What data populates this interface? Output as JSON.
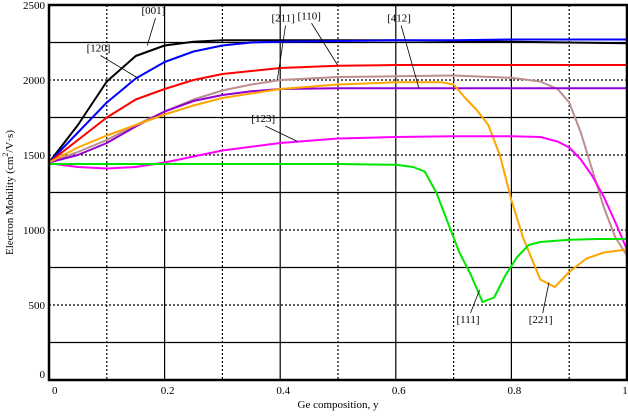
{
  "chart_data": {
    "type": "line",
    "title": "",
    "xlabel": "Ge composition, y",
    "ylabel": "Electron Mobility (cm²/V·s)",
    "ylabel_parts": {
      "main": "Electron Mobility (cm",
      "sup": "2",
      "tail": "/V·s)"
    },
    "xlim": [
      0,
      1
    ],
    "ylim": [
      0,
      2500
    ],
    "x_ticks": [
      0,
      0.2,
      0.4,
      0.6,
      0.8,
      1
    ],
    "x_tick_labels": [
      "0",
      "0.2",
      "0.4",
      "0.6",
      "0.8",
      "1"
    ],
    "y_ticks": [
      0,
      500,
      1000,
      1500,
      2000,
      2500
    ],
    "y_tick_labels": [
      "0",
      "500",
      "1000",
      "1500",
      "2000",
      "2500"
    ],
    "grid": true,
    "legend": "none (inline labels)",
    "series": [
      {
        "name": "[001]",
        "color": "#000000",
        "x": [
          0,
          0.05,
          0.1,
          0.15,
          0.2,
          0.25,
          0.3,
          0.4,
          0.5,
          0.6,
          0.7,
          0.8,
          0.9,
          1.0
        ],
        "y": [
          1450,
          1700,
          1990,
          2160,
          2230,
          2255,
          2265,
          2265,
          2265,
          2265,
          2260,
          2255,
          2250,
          2245
        ]
      },
      {
        "name": "[120]",
        "color": "#0000ff",
        "x": [
          0,
          0.05,
          0.1,
          0.15,
          0.2,
          0.25,
          0.3,
          0.35,
          0.4,
          0.5,
          0.6,
          0.7,
          0.8,
          0.9,
          1.0
        ],
        "y": [
          1450,
          1650,
          1850,
          2010,
          2120,
          2190,
          2230,
          2250,
          2255,
          2260,
          2265,
          2265,
          2270,
          2270,
          2270
        ]
      },
      {
        "name": "[110]",
        "color": "#ff0000",
        "x": [
          0,
          0.05,
          0.1,
          0.15,
          0.2,
          0.25,
          0.3,
          0.4,
          0.5,
          0.6,
          0.7,
          0.8,
          0.9,
          1.0
        ],
        "y": [
          1450,
          1600,
          1750,
          1870,
          1940,
          2000,
          2040,
          2080,
          2095,
          2100,
          2100,
          2100,
          2100,
          2100
        ]
      },
      {
        "name": "[211]",
        "color": "#bc8f8f",
        "x": [
          0,
          0.05,
          0.1,
          0.15,
          0.2,
          0.25,
          0.3,
          0.35,
          0.4,
          0.5,
          0.6,
          0.7,
          0.8,
          0.85,
          0.88,
          0.9,
          0.92,
          0.94,
          0.96,
          0.98,
          1.0
        ],
        "y": [
          1450,
          1520,
          1600,
          1700,
          1790,
          1870,
          1930,
          1970,
          2000,
          2020,
          2025,
          2030,
          2015,
          1990,
          1940,
          1850,
          1650,
          1400,
          1150,
          950,
          830
        ]
      },
      {
        "name": "[412]",
        "color": "#9400d3",
        "x": [
          0,
          0.05,
          0.1,
          0.15,
          0.2,
          0.25,
          0.3,
          0.35,
          0.4,
          0.5,
          0.6,
          0.7,
          0.8,
          0.9,
          1.0
        ],
        "y": [
          1450,
          1500,
          1580,
          1690,
          1790,
          1860,
          1900,
          1925,
          1940,
          1945,
          1945,
          1945,
          1945,
          1945,
          1945
        ]
      },
      {
        "name": "[221]",
        "color": "#ffa500",
        "x": [
          0,
          0.05,
          0.1,
          0.15,
          0.2,
          0.25,
          0.3,
          0.4,
          0.5,
          0.6,
          0.65,
          0.68,
          0.7,
          0.72,
          0.74,
          0.76,
          0.78,
          0.8,
          0.82,
          0.85,
          0.875,
          0.9,
          0.93,
          0.96,
          1.0
        ],
        "y": [
          1450,
          1550,
          1630,
          1700,
          1770,
          1830,
          1880,
          1940,
          1970,
          1985,
          1985,
          1985,
          1970,
          1880,
          1800,
          1700,
          1500,
          1200,
          950,
          670,
          620,
          720,
          810,
          850,
          870
        ]
      },
      {
        "name": "[123]",
        "color": "#ff00ff",
        "x": [
          0,
          0.05,
          0.1,
          0.15,
          0.2,
          0.25,
          0.3,
          0.4,
          0.5,
          0.6,
          0.7,
          0.8,
          0.85,
          0.88,
          0.9,
          0.92,
          0.94,
          0.96,
          0.98,
          1.0
        ],
        "y": [
          1445,
          1420,
          1410,
          1420,
          1450,
          1490,
          1530,
          1580,
          1610,
          1620,
          1625,
          1625,
          1620,
          1590,
          1550,
          1470,
          1360,
          1220,
          1050,
          870
        ]
      },
      {
        "name": "[111]",
        "color": "#00e600",
        "x": [
          0,
          0.05,
          0.1,
          0.2,
          0.3,
          0.4,
          0.5,
          0.6,
          0.63,
          0.65,
          0.67,
          0.69,
          0.71,
          0.73,
          0.75,
          0.77,
          0.79,
          0.81,
          0.83,
          0.85,
          0.9,
          0.95,
          1.0
        ],
        "y": [
          1440,
          1440,
          1440,
          1440,
          1440,
          1440,
          1440,
          1435,
          1420,
          1390,
          1250,
          1050,
          850,
          700,
          520,
          550,
          700,
          820,
          900,
          920,
          935,
          940,
          940
        ]
      }
    ],
    "annotations": [
      {
        "text": "[001]",
        "label_x": 0.16,
        "label_y": 2440,
        "point_x": 0.17,
        "point_y": 2230
      },
      {
        "text": "[120]",
        "label_x": 0.065,
        "label_y": 2190,
        "point_x": 0.155,
        "point_y": 2010
      },
      {
        "text": "[211]",
        "label_x": 0.385,
        "label_y": 2390,
        "point_x": 0.395,
        "point_y": 2000
      },
      {
        "text": "[110]",
        "label_x": 0.43,
        "label_y": 2405,
        "point_x": 0.5,
        "point_y": 2095
      },
      {
        "text": "[412]",
        "label_x": 0.585,
        "label_y": 2390,
        "point_x": 0.64,
        "point_y": 1945
      },
      {
        "text": "[123]",
        "label_x": 0.35,
        "label_y": 1720,
        "point_x": 0.43,
        "point_y": 1590
      },
      {
        "text": "[111]",
        "label_x": 0.705,
        "label_y": 380,
        "point_x": 0.745,
        "point_y": 600
      },
      {
        "text": "[221]",
        "label_x": 0.83,
        "label_y": 380,
        "point_x": 0.865,
        "point_y": 650
      }
    ]
  }
}
